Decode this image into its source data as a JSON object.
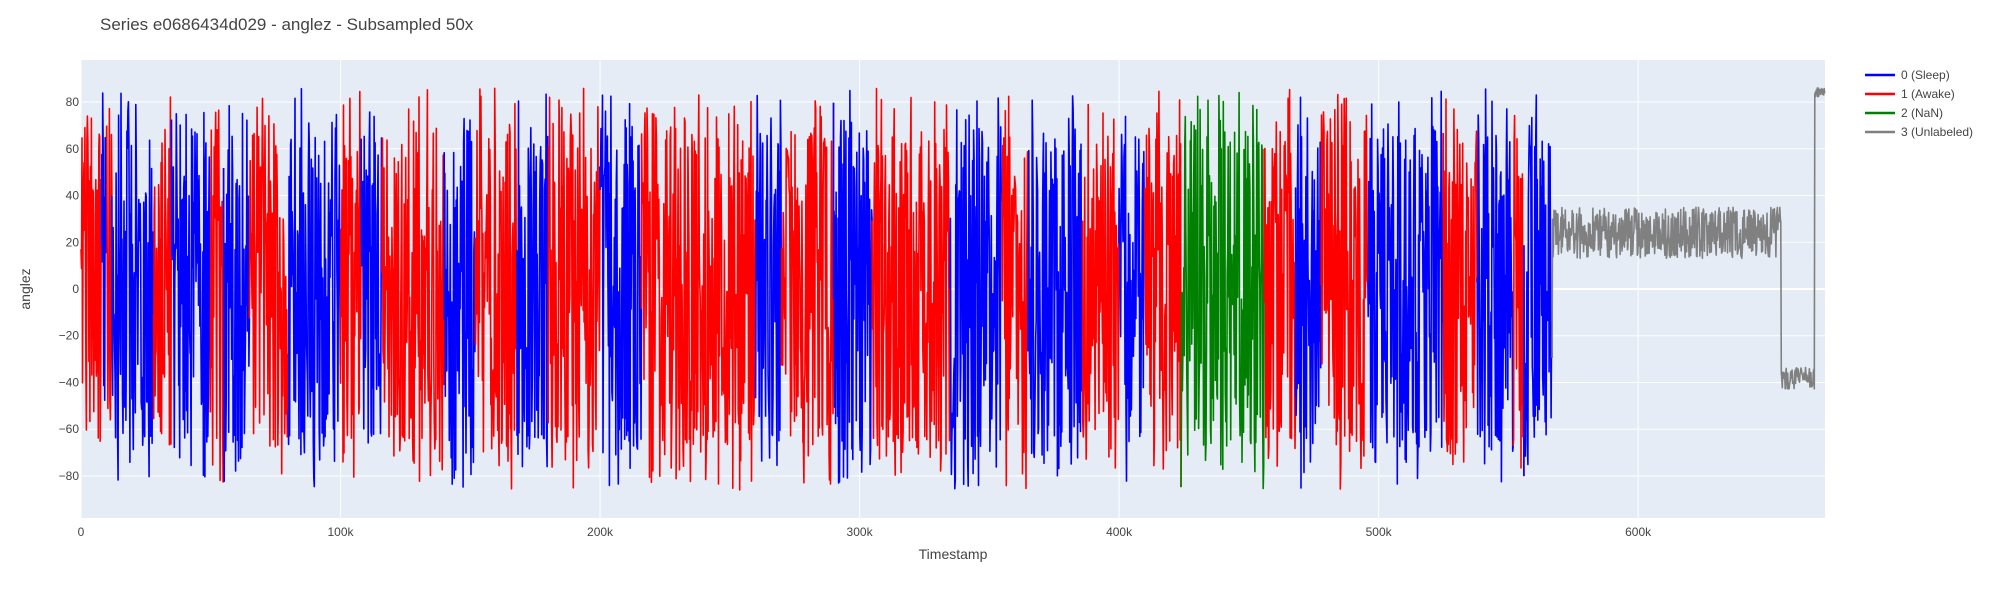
{
  "chart_data": {
    "type": "line",
    "title": "Series e0686434d029 - anglez - Subsampled 50x",
    "xlabel": "Timestamp",
    "ylabel": "anglez",
    "xlim": [
      0,
      672000
    ],
    "ylim": [
      -98,
      98
    ],
    "x_ticks": [
      0,
      100000,
      200000,
      300000,
      400000,
      500000,
      600000
    ],
    "x_tick_labels": [
      "0",
      "100k",
      "200k",
      "300k",
      "400k",
      "500k",
      "600k"
    ],
    "y_ticks": [
      -80,
      -60,
      -40,
      -20,
      0,
      20,
      40,
      60,
      80
    ],
    "y_tick_labels": [
      "−80",
      "−60",
      "−40",
      "−20",
      "0",
      "20",
      "40",
      "60",
      "80"
    ],
    "grid": true,
    "legend_position": "right",
    "background_color": "#e5ecf6",
    "series": [
      {
        "name": "0 (Sleep)",
        "color": "#0000ff",
        "volatility": "high",
        "segments": [
          [
            8000,
            10000
          ],
          [
            12000,
            28000
          ],
          [
            35000,
            50000
          ],
          [
            55000,
            65000
          ],
          [
            80000,
            100000
          ],
          [
            108000,
            116000
          ],
          [
            140000,
            152000
          ],
          [
            168000,
            180000
          ],
          [
            200000,
            216000
          ],
          [
            260000,
            270000
          ],
          [
            290000,
            305000
          ],
          [
            335000,
            355000
          ],
          [
            365000,
            386000
          ],
          [
            400000,
            410000
          ],
          [
            468000,
            478000
          ],
          [
            496000,
            525000
          ],
          [
            538000,
            552000
          ],
          [
            556000,
            567000
          ]
        ]
      },
      {
        "name": "1 (Awake)",
        "color": "#ff0000",
        "volatility": "high",
        "segments": [
          [
            0,
            8000
          ],
          [
            10000,
            12000
          ],
          [
            28000,
            35000
          ],
          [
            50000,
            55000
          ],
          [
            65000,
            80000
          ],
          [
            100000,
            108000
          ],
          [
            116000,
            140000
          ],
          [
            152000,
            168000
          ],
          [
            180000,
            200000
          ],
          [
            216000,
            260000
          ],
          [
            270000,
            290000
          ],
          [
            305000,
            335000
          ],
          [
            355000,
            365000
          ],
          [
            386000,
            400000
          ],
          [
            410000,
            424000
          ],
          [
            456000,
            468000
          ],
          [
            478000,
            496000
          ],
          [
            525000,
            538000
          ],
          [
            552000,
            556000
          ]
        ]
      },
      {
        "name": "2 (NaN)",
        "color": "#008000",
        "volatility": "high",
        "segments": [
          [
            424000,
            456000
          ]
        ]
      },
      {
        "name": "3 (Unlabeled)",
        "color": "#808080",
        "volatility": "low",
        "segments": [
          [
            567000,
            672000
          ]
        ]
      }
    ]
  }
}
